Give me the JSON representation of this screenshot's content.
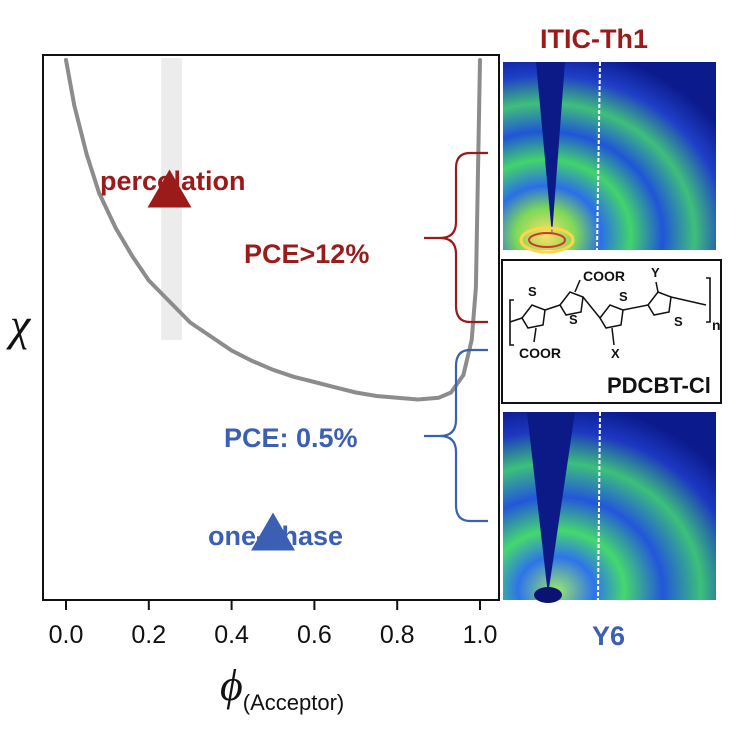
{
  "chart_data": {
    "type": "line",
    "x_axis": {
      "min": 0.0,
      "max": 1.0,
      "ticks": [
        "0.0",
        "0.2",
        "0.4",
        "0.6",
        "0.8",
        "1.0"
      ],
      "label_symbol": "ϕ",
      "label_subscript": "(Acceptor)"
    },
    "y_axis": {
      "label_symbol": "χ",
      "ticks": []
    },
    "series": [
      {
        "x": [
          0.0,
          0.02,
          0.05,
          0.08,
          0.12,
          0.16,
          0.2,
          0.25,
          0.3,
          0.35,
          0.4,
          0.45,
          0.5,
          0.55,
          0.6,
          0.65,
          0.7,
          0.75,
          0.8,
          0.85,
          0.9,
          0.93,
          0.96,
          0.98,
          0.99,
          1.0
        ],
        "y": [
          1.0,
          0.87,
          0.73,
          0.62,
          0.52,
          0.44,
          0.37,
          0.31,
          0.25,
          0.21,
          0.17,
          0.14,
          0.115,
          0.095,
          0.08,
          0.065,
          0.05,
          0.04,
          0.035,
          0.03,
          0.035,
          0.05,
          0.1,
          0.2,
          0.35,
          1.0
        ]
      }
    ],
    "highlight_band_x": [
      0.23,
      0.28
    ],
    "points": [
      {
        "label": "percolation",
        "x": 0.25,
        "y": 0.63,
        "marker": "triangle",
        "color": "#9b1b1b"
      },
      {
        "label": "one-phase",
        "x": 0.5,
        "y": -0.35,
        "marker": "triangle",
        "color": "#3b5fb3"
      }
    ],
    "annotations": {
      "red_pce": "PCE>12%",
      "blue_pce": "PCE: 0.5%"
    },
    "grid": false
  },
  "panels": {
    "top_title": "ITIC-Th1",
    "bottom_title": "Y6"
  },
  "structure": {
    "name": "PDCBT-Cl",
    "s_label": "S",
    "coor": "COOR",
    "x_sub": "X",
    "y_sub": "Y",
    "n_sub": "n"
  },
  "colors": {
    "red": "#9b1b1b",
    "blue": "#3b5fb3",
    "curve": "#8c8c8c",
    "band": "#ececec"
  }
}
